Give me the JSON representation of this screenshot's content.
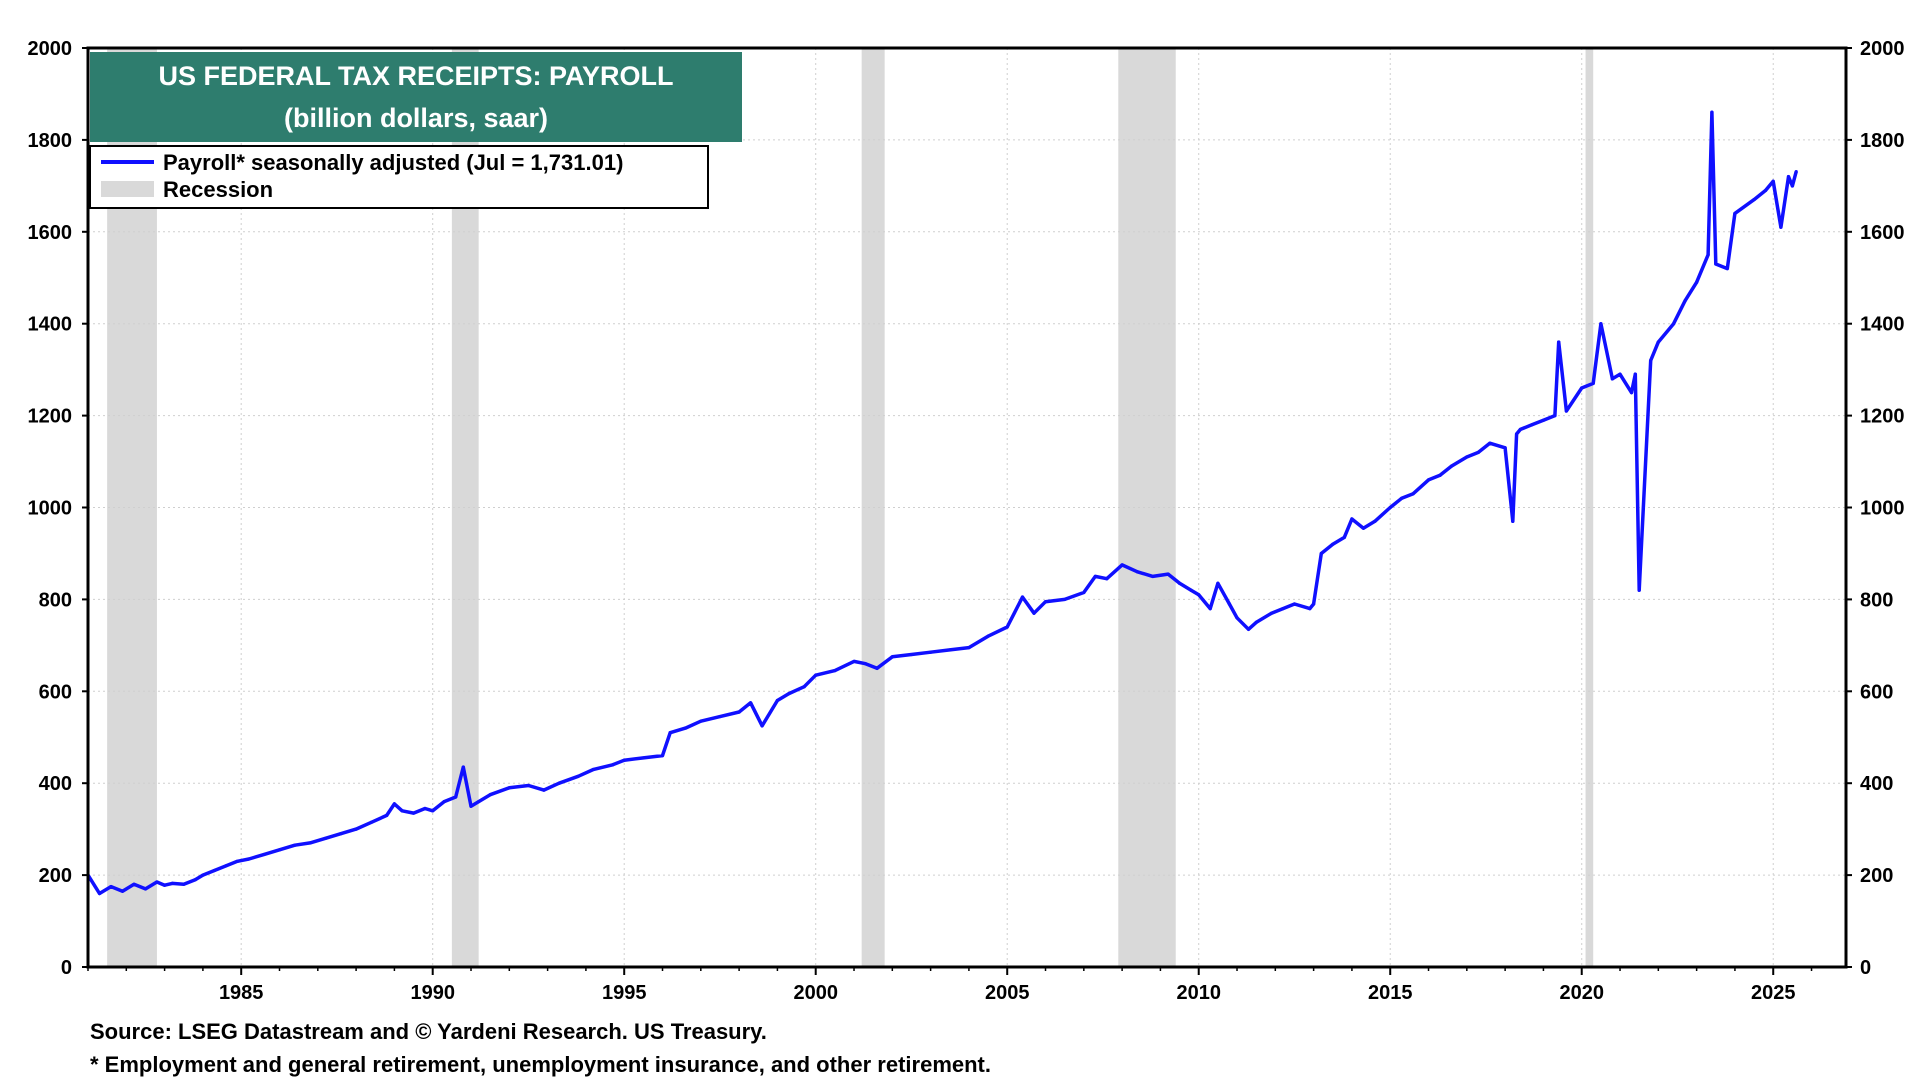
{
  "chart_data": {
    "type": "line",
    "title": "US FEDERAL TAX RECEIPTS: PAYROLL",
    "subtitle": "(billion dollars, saar)",
    "xlabel": "",
    "ylabel": "",
    "xlim": [
      1981.0,
      2026.9
    ],
    "ylim": [
      0,
      2000
    ],
    "x_ticks": [
      "1985",
      "1990",
      "1995",
      "2000",
      "2005",
      "2010",
      "2015",
      "2020",
      "2025"
    ],
    "y_ticks": [
      "0",
      "200",
      "400",
      "600",
      "800",
      "1000",
      "1200",
      "1400",
      "1600",
      "1800",
      "2000"
    ],
    "grid": true,
    "legend_position": "top-left",
    "legend": [
      {
        "label": "Payroll* seasonally adjusted (Jul = 1,731.01)",
        "color": "#1010ff",
        "kind": "line"
      },
      {
        "label": "Recession",
        "color": "#d9d9d9",
        "kind": "band"
      }
    ],
    "recessions": [
      [
        1981.5,
        1982.8
      ],
      [
        1990.5,
        1991.2
      ],
      [
        2001.2,
        2001.8
      ],
      [
        2007.9,
        2009.4
      ],
      [
        2020.1,
        2020.3
      ]
    ],
    "series": [
      {
        "name": "Payroll* seasonally adjusted",
        "color": "#1010ff",
        "x": [
          1981.0,
          1981.3,
          1981.6,
          1981.9,
          1982.2,
          1982.5,
          1982.8,
          1983.0,
          1983.2,
          1983.5,
          1983.8,
          1984.0,
          1984.3,
          1984.6,
          1984.9,
          1985.2,
          1985.6,
          1986.0,
          1986.4,
          1986.8,
          1987.2,
          1987.6,
          1988.0,
          1988.4,
          1988.8,
          1989.0,
          1989.2,
          1989.5,
          1989.8,
          1990.0,
          1990.3,
          1990.6,
          1990.8,
          1991.0,
          1991.2,
          1991.5,
          1992.0,
          1992.5,
          1992.9,
          1993.3,
          1993.8,
          1994.2,
          1994.7,
          1995.0,
          1995.5,
          1996.0,
          1996.2,
          1996.6,
          1997.0,
          1997.5,
          1998.0,
          1998.3,
          1998.6,
          1999.0,
          1999.3,
          1999.7,
          2000.0,
          2000.5,
          2001.0,
          2001.3,
          2001.6,
          2002.0,
          2002.5,
          2003.0,
          2003.5,
          2004.0,
          2004.5,
          2005.0,
          2005.4,
          2005.7,
          2006.0,
          2006.5,
          2007.0,
          2007.3,
          2007.6,
          2008.0,
          2008.4,
          2008.8,
          2009.2,
          2009.5,
          2009.8,
          2010.0,
          2010.3,
          2010.5,
          2010.8,
          2011.0,
          2011.3,
          2011.5,
          2011.9,
          2012.2,
          2012.5,
          2012.9,
          2013.0,
          2013.2,
          2013.5,
          2013.8,
          2014.0,
          2014.3,
          2014.6,
          2015.0,
          2015.3,
          2015.6,
          2016.0,
          2016.3,
          2016.6,
          2017.0,
          2017.3,
          2017.6,
          2018.0,
          2018.2,
          2018.3,
          2018.4,
          2018.7,
          2019.0,
          2019.3,
          2019.4,
          2019.6,
          2020.0,
          2020.3,
          2020.5,
          2020.8,
          2021.0,
          2021.3,
          2021.4,
          2021.5,
          2021.8,
          2022.0,
          2022.4,
          2022.7,
          2023.0,
          2023.3,
          2023.4,
          2023.5,
          2023.8,
          2024.0,
          2024.5,
          2024.8,
          2025.0,
          2025.2,
          2025.4,
          2025.5,
          2025.6
        ],
        "values": [
          200,
          160,
          175,
          165,
          180,
          170,
          185,
          178,
          182,
          180,
          190,
          200,
          210,
          220,
          230,
          235,
          245,
          255,
          265,
          270,
          280,
          290,
          300,
          315,
          330,
          355,
          340,
          335,
          345,
          340,
          360,
          370,
          435,
          350,
          360,
          375,
          390,
          395,
          385,
          400,
          415,
          430,
          440,
          450,
          455,
          460,
          510,
          520,
          535,
          545,
          555,
          575,
          525,
          580,
          595,
          610,
          635,
          645,
          665,
          660,
          650,
          675,
          680,
          685,
          690,
          695,
          720,
          740,
          805,
          770,
          795,
          800,
          815,
          850,
          845,
          875,
          860,
          850,
          855,
          835,
          820,
          810,
          780,
          835,
          790,
          760,
          735,
          750,
          770,
          780,
          790,
          780,
          790,
          900,
          920,
          935,
          975,
          955,
          970,
          1000,
          1020,
          1030,
          1060,
          1070,
          1090,
          1110,
          1120,
          1140,
          1130,
          970,
          1160,
          1170,
          1180,
          1190,
          1200,
          1360,
          1210,
          1260,
          1270,
          1400,
          1280,
          1290,
          1250,
          1290,
          820,
          1320,
          1360,
          1400,
          1450,
          1490,
          1550,
          1860,
          1530,
          1520,
          1640,
          1670,
          1690,
          1710,
          1610,
          1720,
          1700,
          1731
        ]
      }
    ]
  },
  "footer": {
    "source": "Source: LSEG Datastream and © Yardeni Research. US Treasury.",
    "note": "* Employment and general  retirement, unemployment insurance, and other retirement."
  }
}
